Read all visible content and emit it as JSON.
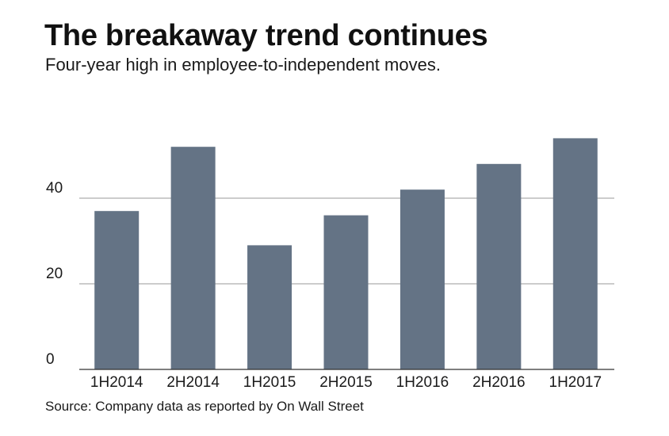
{
  "header": {
    "title": "The breakaway trend continues",
    "subtitle": "Four-year high in employee-to-independent moves."
  },
  "footer": {
    "source": "Source: Company data as reported by On Wall Street"
  },
  "colors": {
    "bar": "#647385",
    "grid": "#9a9a9a",
    "baseline": "#333333"
  },
  "chart_data": {
    "type": "bar",
    "title": "The breakaway trend continues",
    "subtitle": "Four-year high in employee-to-independent moves.",
    "xlabel": "",
    "ylabel": "",
    "categories": [
      "1H2014",
      "2H2014",
      "1H2015",
      "2H2015",
      "1H2016",
      "2H2016",
      "1H2017"
    ],
    "values": [
      37,
      52,
      29,
      36,
      42,
      48,
      54
    ],
    "ylim": [
      0,
      60
    ],
    "yticks": [
      0,
      20,
      40
    ],
    "grid": true,
    "legend": "none"
  }
}
